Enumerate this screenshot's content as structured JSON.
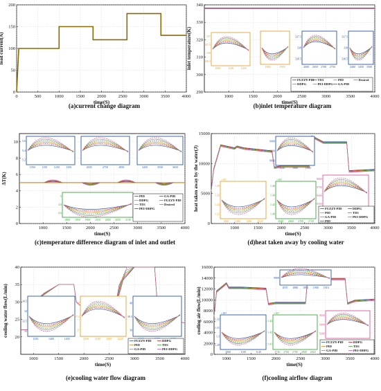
{
  "colors": {
    "pid": "#2a56a8",
    "fuzzy_pid": "#d11a2a",
    "ddpg": "#d98a1a",
    "td3": "#3aa63a",
    "ga_pid": "#8a8a8a",
    "pei_ddpg": "#e0559a",
    "desired": "#e08a1a",
    "load": "#8a6a00",
    "zoom_a": "#e8a030",
    "zoom_b": "#2a56a8",
    "zoom_c": "#3aa63a",
    "zoom_d": "#e0559a"
  },
  "legend_series": {
    "fuzzy_pid": "FUZZY-PID",
    "td3": "TD3",
    "pid": "PID",
    "desired": "Desired",
    "ddpg": "DDPG",
    "pei_ddpg": "PEI-DDPG",
    "ga_pid": "GA-PID"
  },
  "chart_data": [
    {
      "type": "line",
      "caption": "(a)current change diagram",
      "xlabel": "time(S)",
      "ylabel": "load current(A)",
      "xlim": [
        0,
        4000
      ],
      "ylim": [
        0,
        200
      ],
      "xticks": [
        0,
        500,
        1000,
        1500,
        2000,
        2500,
        3000,
        3500,
        4000
      ],
      "yticks": [
        0,
        50,
        100,
        150,
        200
      ],
      "grid": true,
      "series": [
        {
          "x": [
            0,
            50,
            50,
            1000,
            1000,
            1800,
            1800,
            2600,
            2600,
            3400,
            3400,
            4000
          ],
          "y": [
            0,
            100,
            100,
            100,
            150,
            150,
            120,
            120,
            180,
            180,
            130,
            130
          ]
        }
      ]
    },
    {
      "type": "line",
      "caption": "(b)inlet temperature diagram",
      "xlabel": "time(S)",
      "ylabel": "inlet temperature(K)",
      "xlim": [
        500,
        4000
      ],
      "ylim": [
        290,
        340
      ],
      "xticks": [
        1000,
        1500,
        2000,
        2500,
        3000,
        3500,
        4000
      ],
      "yticks": [
        290,
        300,
        310,
        320,
        330,
        340
      ],
      "grid": true,
      "series_value": 338,
      "legend_items": [
        "FUZZY-PID",
        "TD3",
        "PID",
        "Desired",
        "DDPG",
        "PEI-DDPG",
        "GA-PID"
      ],
      "insets": [
        {
          "xticks": [
            "1000",
            "1100",
            "1200"
          ],
          "yticks": [
            "337",
            "337.5",
            "338",
            "338.5"
          ]
        },
        {
          "xticks": [
            "1800",
            "1900"
          ],
          "yticks": []
        },
        {
          "xticks": [
            "2600",
            "2650",
            "2700",
            "2750"
          ],
          "yticks": [
            "337.5",
            "338",
            "338.5"
          ]
        },
        {
          "xticks": [
            "3400",
            "3450",
            "3500"
          ],
          "yticks": [
            "337.5",
            "338",
            "338.5"
          ]
        }
      ]
    },
    {
      "type": "line",
      "caption": "(c)temperature difference diagram of inlet and outlet",
      "xlabel": "time(S)",
      "ylabel": "ΔT(K)",
      "xlim": [
        500,
        4000
      ],
      "ylim": [
        0,
        11
      ],
      "xticks": [
        1000,
        1500,
        2000,
        2500,
        3000,
        3500,
        4000
      ],
      "yticks": [
        0,
        2,
        4,
        6,
        8,
        10
      ],
      "grid": true,
      "series_value": 5,
      "legend_items": [
        "PID",
        "GA-PID",
        "DDPG",
        "FUZZY-PID",
        "TD3",
        "Desired",
        "PEI-DDPG"
      ],
      "insets": [
        {
          "xticks": [
            "1050",
            "1150",
            "1250",
            "1350"
          ],
          "yticks": [
            "5.6",
            "5.4",
            "5.2"
          ]
        },
        {
          "xticks": [
            "2650",
            "2750",
            "2850"
          ],
          "yticks": []
        },
        {
          "xticks": [
            "3450",
            "3550",
            "3650"
          ],
          "yticks": []
        },
        {
          "xticks": [
            "1800",
            "1850",
            "1900",
            "1950",
            "2000",
            "2050",
            "2100"
          ],
          "yticks": [
            "5",
            "4.8",
            "4.6"
          ]
        }
      ]
    },
    {
      "type": "line",
      "caption": "(d)heat taken away by cooling water",
      "xlabel": "time(S)",
      "ylabel": "heat taken away by the water(J)",
      "xlim": [
        500,
        4000
      ],
      "ylim": [
        0,
        15000
      ],
      "xticks": [
        1000,
        1500,
        2000,
        2500,
        3000,
        3500,
        4000
      ],
      "yticks": [
        0,
        5000,
        10000,
        15000
      ],
      "grid": true,
      "legend_items": [
        "FUZZY-PID",
        "DDPG",
        "PID",
        "TD3",
        "GA-PID",
        "PEI-DDPG",
        "PID"
      ],
      "insets": [
        {
          "xticks": [
            "1840",
            "1860",
            "1880"
          ],
          "yticks": [
            "9400",
            "9200",
            "9000"
          ]
        },
        {
          "xticks": [
            "1060",
            "1080",
            "1100",
            "1120"
          ],
          "yticks": [
            "1.28",
            "1.26",
            "1.24",
            "1.22"
          ],
          "exponent": "×10⁴"
        },
        {
          "xticks": [
            "2640",
            "2660",
            "2700",
            "2720"
          ],
          "yticks": [
            "1.46",
            "1.44",
            "1.42",
            "1.40"
          ],
          "exponent": "×10⁴"
        },
        {
          "xticks": [
            "3450",
            "3470",
            "3490"
          ],
          "yticks": [
            "8800",
            "8700",
            "8600",
            "8500"
          ]
        }
      ]
    },
    {
      "type": "line",
      "caption": "(e)cooling water flow diagram",
      "xlabel": "time(S)",
      "ylabel": "cooling water flow(L/min)",
      "xlim": [
        750,
        4000
      ],
      "ylim": [
        15,
        40
      ],
      "xticks": [
        1000,
        1500,
        2000,
        2500,
        3000,
        3500,
        4000
      ],
      "yticks": [
        20,
        25,
        30,
        35,
        40
      ],
      "grid": true,
      "legend_items": [
        "FUZZY-PID",
        "DDPG",
        "PID",
        "TD3",
        "GA-PID",
        "PEI-DDPG"
      ],
      "insets": [
        {
          "xticks": [
            "1350",
            "1400",
            "1450"
          ],
          "yticks": [
            "34.5",
            "34",
            "33.5",
            "33"
          ]
        },
        {
          "xticks": [
            "2160",
            "2180",
            "2200",
            "2220"
          ],
          "yticks": [
            "28",
            "27.5",
            "27"
          ]
        },
        {
          "xticks": [
            "3100",
            "3150",
            "3200"
          ],
          "yticks": [
            "40",
            "39.5",
            "39"
          ]
        }
      ]
    },
    {
      "type": "line",
      "caption": "(f)cooling airflow diagram",
      "xlabel": "time(S)",
      "ylabel": "cooling air flow(L/min)",
      "xlim": [
        750,
        4000
      ],
      "ylim": [
        0,
        16000
      ],
      "xticks": [
        1000,
        1500,
        2000,
        2500,
        3000,
        3500,
        4000
      ],
      "yticks": [
        0,
        2000,
        4000,
        6000,
        8000,
        10000,
        12000,
        14000,
        16000
      ],
      "grid": true,
      "legend_items": [
        "FUZZY-PID",
        "DDPG",
        "PID",
        "TD3",
        "GA-PID",
        "PEI-DDPG"
      ],
      "insets": [
        {
          "xticks": [
            "1870",
            "1880",
            "1890",
            "1900",
            "1910"
          ],
          "yticks": [
            "9000"
          ]
        },
        {
          "xticks": [
            "1060",
            "1100",
            "1140"
          ],
          "yticks": [
            "1.32",
            "1.31",
            "1.3",
            "1.29"
          ],
          "exponent": "×10⁴"
        },
        {
          "xticks": [
            "2740",
            "2760",
            "2780",
            "2800",
            "2820"
          ],
          "yticks": [
            "1.43",
            "1.42",
            "1.41"
          ],
          "exponent": "×10⁴"
        },
        {
          "xticks": [
            "3470",
            "3480",
            "3490",
            "3500",
            "3510"
          ],
          "yticks": [
            "9600",
            "9400",
            "9200"
          ]
        }
      ]
    }
  ]
}
